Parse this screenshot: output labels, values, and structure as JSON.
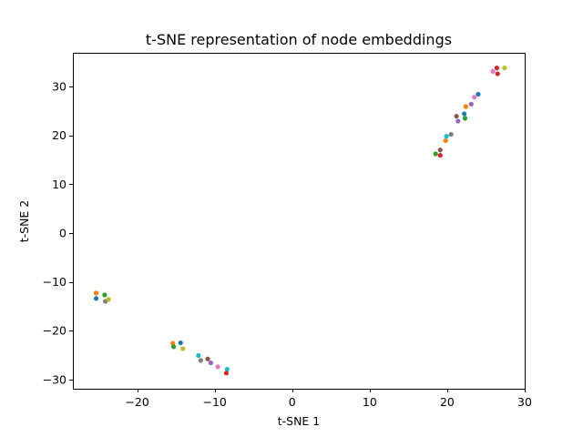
{
  "chart_data": {
    "type": "scatter",
    "title": "t-SNE representation of node embeddings",
    "xlabel": "t-SNE 1",
    "ylabel": "t-SNE 2",
    "xlim": [
      -28.3,
      30.0
    ],
    "ylim": [
      -31.9,
      36.9
    ],
    "xticks": [
      -20,
      -10,
      0,
      10,
      20,
      30
    ],
    "yticks": [
      -30,
      -20,
      -10,
      0,
      10,
      20,
      30
    ],
    "xtick_labels": [
      "−20",
      "−10",
      "0",
      "10",
      "20",
      "30"
    ],
    "ytick_labels": [
      "−30",
      "−20",
      "−10",
      "0",
      "10",
      "20",
      "30"
    ],
    "grid": false,
    "legend": "none",
    "palette": [
      "#1f77b4",
      "#ff7f0e",
      "#2ca02c",
      "#d62728",
      "#9467bd",
      "#8c564b",
      "#e377c2",
      "#7f7f7f",
      "#bcbd22",
      "#17becf"
    ],
    "points": [
      {
        "x": -25.3,
        "y": -12.3,
        "color": "#ff7f0e"
      },
      {
        "x": -25.3,
        "y": -13.4,
        "color": "#1f77b4"
      },
      {
        "x": -24.2,
        "y": -12.7,
        "color": "#2ca02c"
      },
      {
        "x": -24.1,
        "y": -14.0,
        "color": "#7f7f7f"
      },
      {
        "x": -23.7,
        "y": -13.6,
        "color": "#bcbd22"
      },
      {
        "x": -15.4,
        "y": -22.6,
        "color": "#ff7f0e"
      },
      {
        "x": -15.3,
        "y": -23.3,
        "color": "#2ca02c"
      },
      {
        "x": -14.4,
        "y": -22.5,
        "color": "#1f77b4"
      },
      {
        "x": -14.1,
        "y": -23.7,
        "color": "#bcbd22"
      },
      {
        "x": -12.1,
        "y": -25.1,
        "color": "#17becf"
      },
      {
        "x": -11.8,
        "y": -26.1,
        "color": "#7f7f7f"
      },
      {
        "x": -10.9,
        "y": -25.8,
        "color": "#8c564b"
      },
      {
        "x": -10.5,
        "y": -26.6,
        "color": "#9467bd"
      },
      {
        "x": -9.6,
        "y": -27.4,
        "color": "#e377c2"
      },
      {
        "x": -8.4,
        "y": -27.9,
        "color": "#17becf"
      },
      {
        "x": -8.5,
        "y": -28.7,
        "color": "#d62728"
      },
      {
        "x": 18.5,
        "y": 16.2,
        "color": "#2ca02c"
      },
      {
        "x": 19.1,
        "y": 15.9,
        "color": "#d62728"
      },
      {
        "x": 19.1,
        "y": 17.0,
        "color": "#8c564b"
      },
      {
        "x": 19.8,
        "y": 18.9,
        "color": "#ff7f0e"
      },
      {
        "x": 19.9,
        "y": 19.8,
        "color": "#17becf"
      },
      {
        "x": 20.5,
        "y": 20.2,
        "color": "#7f7f7f"
      },
      {
        "x": 21.2,
        "y": 23.9,
        "color": "#8c564b"
      },
      {
        "x": 21.4,
        "y": 22.9,
        "color": "#9467bd"
      },
      {
        "x": 22.2,
        "y": 24.4,
        "color": "#1f77b4"
      },
      {
        "x": 22.3,
        "y": 23.5,
        "color": "#2ca02c"
      },
      {
        "x": 22.4,
        "y": 25.9,
        "color": "#ff7f0e"
      },
      {
        "x": 23.1,
        "y": 26.4,
        "color": "#9467bd"
      },
      {
        "x": 23.5,
        "y": 27.8,
        "color": "#e377c2"
      },
      {
        "x": 24.0,
        "y": 28.4,
        "color": "#1f77b4"
      },
      {
        "x": 25.9,
        "y": 33.1,
        "color": "#e377c2"
      },
      {
        "x": 26.4,
        "y": 33.8,
        "color": "#d62728"
      },
      {
        "x": 26.5,
        "y": 32.6,
        "color": "#d62728"
      },
      {
        "x": 27.4,
        "y": 33.8,
        "color": "#bcbd22"
      }
    ]
  }
}
